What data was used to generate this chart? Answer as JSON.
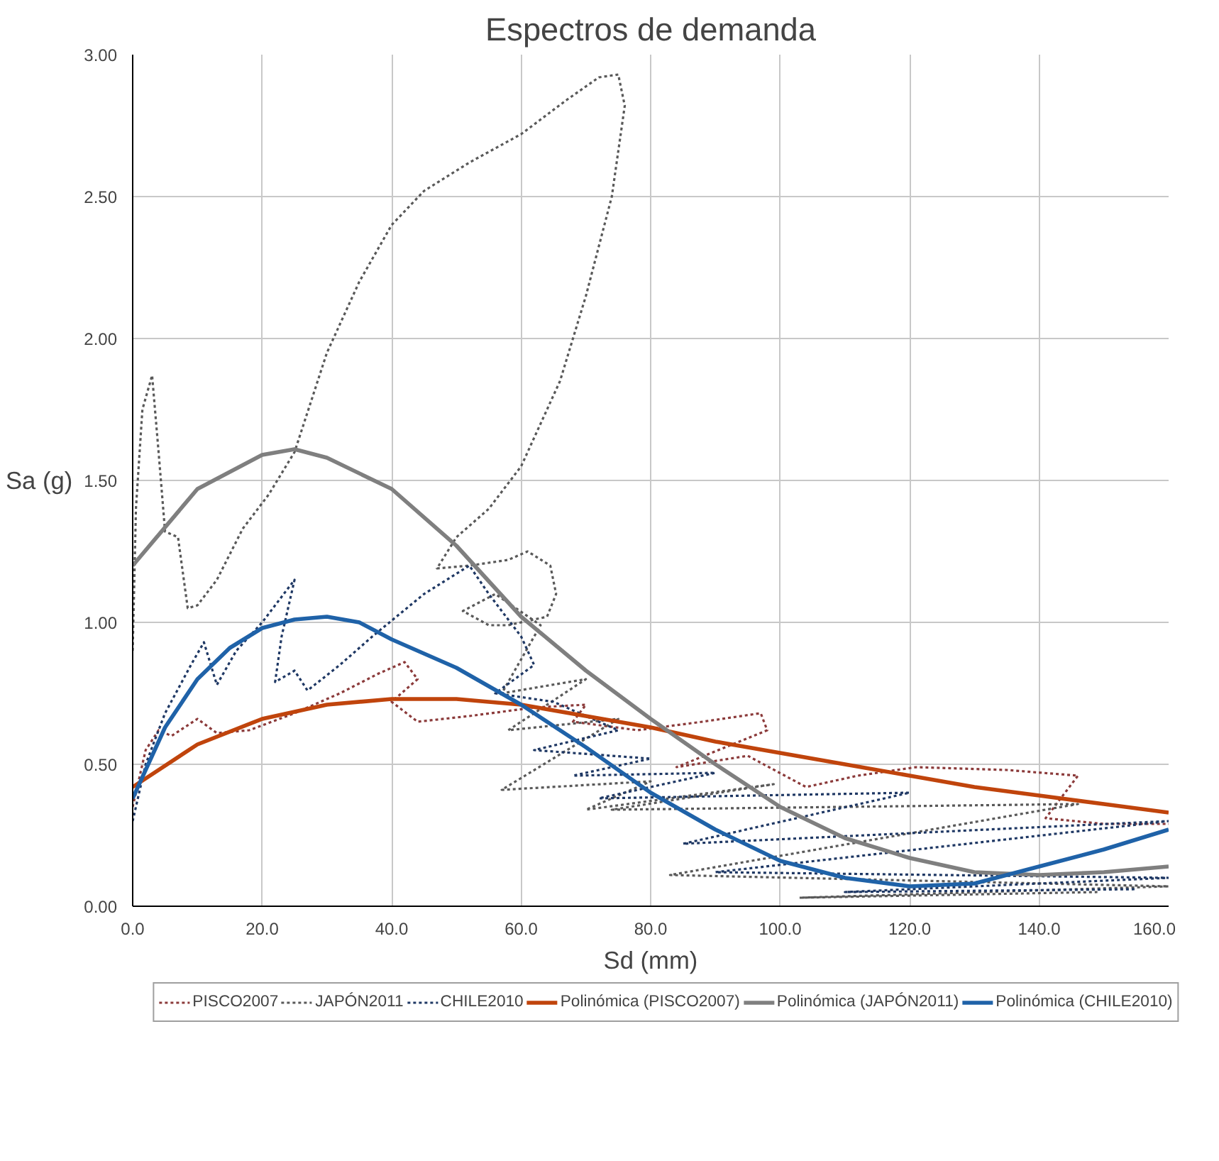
{
  "chart_data": {
    "type": "line",
    "title": "Espectros de demanda",
    "xlabel": "Sd (mm)",
    "ylabel": "Sa (g)",
    "xlim": [
      0,
      160
    ],
    "ylim": [
      0,
      3
    ],
    "xticks": [
      {
        "value": 0,
        "label": "0.0"
      },
      {
        "value": 20,
        "label": "20.0"
      },
      {
        "value": 40,
        "label": "40.0"
      },
      {
        "value": 60,
        "label": "60.0"
      },
      {
        "value": 80,
        "label": "80.0"
      },
      {
        "value": 100,
        "label": "100.0"
      },
      {
        "value": 120,
        "label": "120.0"
      },
      {
        "value": 140,
        "label": "140.0"
      },
      {
        "value": 160,
        "label": "160.0"
      }
    ],
    "yticks": [
      {
        "value": 0,
        "label": "0.00"
      },
      {
        "value": 0.5,
        "label": "0.50"
      },
      {
        "value": 1,
        "label": "1.00"
      },
      {
        "value": 1.5,
        "label": "1.50"
      },
      {
        "value": 2,
        "label": "2.00"
      },
      {
        "value": 2.5,
        "label": "2.50"
      },
      {
        "value": 3,
        "label": "3.00"
      }
    ],
    "grid": true,
    "legend": "bottom",
    "marker": "none",
    "series": [
      {
        "name": "PISCO2007",
        "color": "#8b3a3a",
        "line_style": "dotted",
        "x": [
          0,
          2,
          4,
          6,
          10,
          13,
          18,
          25,
          32,
          38,
          42,
          44,
          40,
          44,
          52,
          62,
          70,
          68,
          78,
          88,
          97,
          98,
          84,
          95,
          104,
          112,
          121,
          135,
          146,
          141,
          150,
          160
        ],
        "values": [
          0.35,
          0.55,
          0.62,
          0.6,
          0.66,
          0.61,
          0.62,
          0.68,
          0.75,
          0.82,
          0.86,
          0.8,
          0.72,
          0.65,
          0.67,
          0.7,
          0.71,
          0.65,
          0.62,
          0.65,
          0.68,
          0.62,
          0.49,
          0.53,
          0.42,
          0.46,
          0.49,
          0.48,
          0.46,
          0.31,
          0.29,
          0.29
        ]
      },
      {
        "name": "JAPÓN2011",
        "color": "#595959",
        "line_style": "dotted",
        "x": [
          0,
          0.5,
          1.5,
          3,
          4,
          5,
          7,
          8.5,
          10,
          13,
          17,
          21,
          25,
          30,
          35,
          40,
          45,
          52,
          60,
          67,
          72,
          75,
          76,
          74,
          70,
          66,
          60,
          55,
          50,
          47,
          52,
          58,
          61,
          64.5,
          65.4,
          64,
          58,
          55,
          51,
          56,
          63,
          57,
          70,
          58,
          75,
          57,
          80,
          70,
          99,
          74,
          146,
          83,
          160,
          103,
          149
        ],
        "values": [
          0.9,
          1.4,
          1.75,
          1.87,
          1.6,
          1.32,
          1.3,
          1.05,
          1.06,
          1.15,
          1.33,
          1.45,
          1.6,
          1.95,
          2.2,
          2.4,
          2.52,
          2.62,
          2.72,
          2.84,
          2.92,
          2.93,
          2.82,
          2.5,
          2.15,
          1.85,
          1.55,
          1.4,
          1.3,
          1.19,
          1.2,
          1.22,
          1.25,
          1.2,
          1.1,
          1.02,
          0.99,
          0.99,
          1.04,
          1.1,
          0.99,
          0.75,
          0.8,
          0.62,
          0.66,
          0.41,
          0.44,
          0.34,
          0.43,
          0.34,
          0.36,
          0.11,
          0.07,
          0.03,
          0.05
        ]
      },
      {
        "name": "CHILE2010",
        "color": "#1f3864",
        "line_style": "dotted",
        "x": [
          0,
          2,
          5,
          9,
          11,
          13,
          16,
          20,
          25,
          23,
          22,
          25,
          27,
          32,
          37,
          45,
          52,
          55,
          60,
          62,
          56,
          65,
          75,
          62,
          80,
          68,
          90,
          72,
          120,
          85,
          160,
          90,
          160,
          110,
          155
        ],
        "values": [
          0.3,
          0.5,
          0.68,
          0.85,
          0.93,
          0.78,
          0.9,
          1.0,
          1.15,
          0.95,
          0.79,
          0.83,
          0.76,
          0.85,
          0.95,
          1.1,
          1.2,
          1.1,
          0.95,
          0.85,
          0.75,
          0.72,
          0.62,
          0.55,
          0.52,
          0.46,
          0.47,
          0.38,
          0.4,
          0.22,
          0.3,
          0.12,
          0.1,
          0.05,
          0.06
        ]
      },
      {
        "name": "Polinómica (PISCO2007)",
        "color": "#c0440c",
        "line_style": "solid",
        "x": [
          0,
          10,
          20,
          30,
          40,
          50,
          60,
          70,
          80,
          90,
          100,
          110,
          120,
          130,
          140,
          150,
          160
        ],
        "values": [
          0.42,
          0.57,
          0.66,
          0.71,
          0.73,
          0.73,
          0.71,
          0.67,
          0.63,
          0.58,
          0.54,
          0.5,
          0.46,
          0.42,
          0.39,
          0.36,
          0.33
        ]
      },
      {
        "name": "Polinómica (JAPÓN2011)",
        "color": "#7f7f7f",
        "line_style": "solid",
        "x": [
          0,
          10,
          20,
          25,
          30,
          40,
          50,
          60,
          70,
          80,
          90,
          100,
          110,
          120,
          130,
          140,
          150,
          160
        ],
        "values": [
          1.2,
          1.47,
          1.59,
          1.61,
          1.58,
          1.47,
          1.27,
          1.02,
          0.83,
          0.66,
          0.5,
          0.35,
          0.24,
          0.17,
          0.12,
          0.11,
          0.12,
          0.14
        ]
      },
      {
        "name": "Polinómica (CHILE2010)",
        "color": "#1f62a8",
        "line_style": "solid",
        "x": [
          0,
          5,
          10,
          15,
          20,
          25,
          30,
          35,
          40,
          50,
          60,
          70,
          80,
          90,
          100,
          110,
          120,
          130,
          140,
          150,
          160
        ],
        "values": [
          0.38,
          0.63,
          0.8,
          0.91,
          0.98,
          1.01,
          1.02,
          1.0,
          0.94,
          0.84,
          0.71,
          0.56,
          0.4,
          0.27,
          0.16,
          0.1,
          0.07,
          0.08,
          0.14,
          0.2,
          0.27
        ]
      }
    ]
  }
}
